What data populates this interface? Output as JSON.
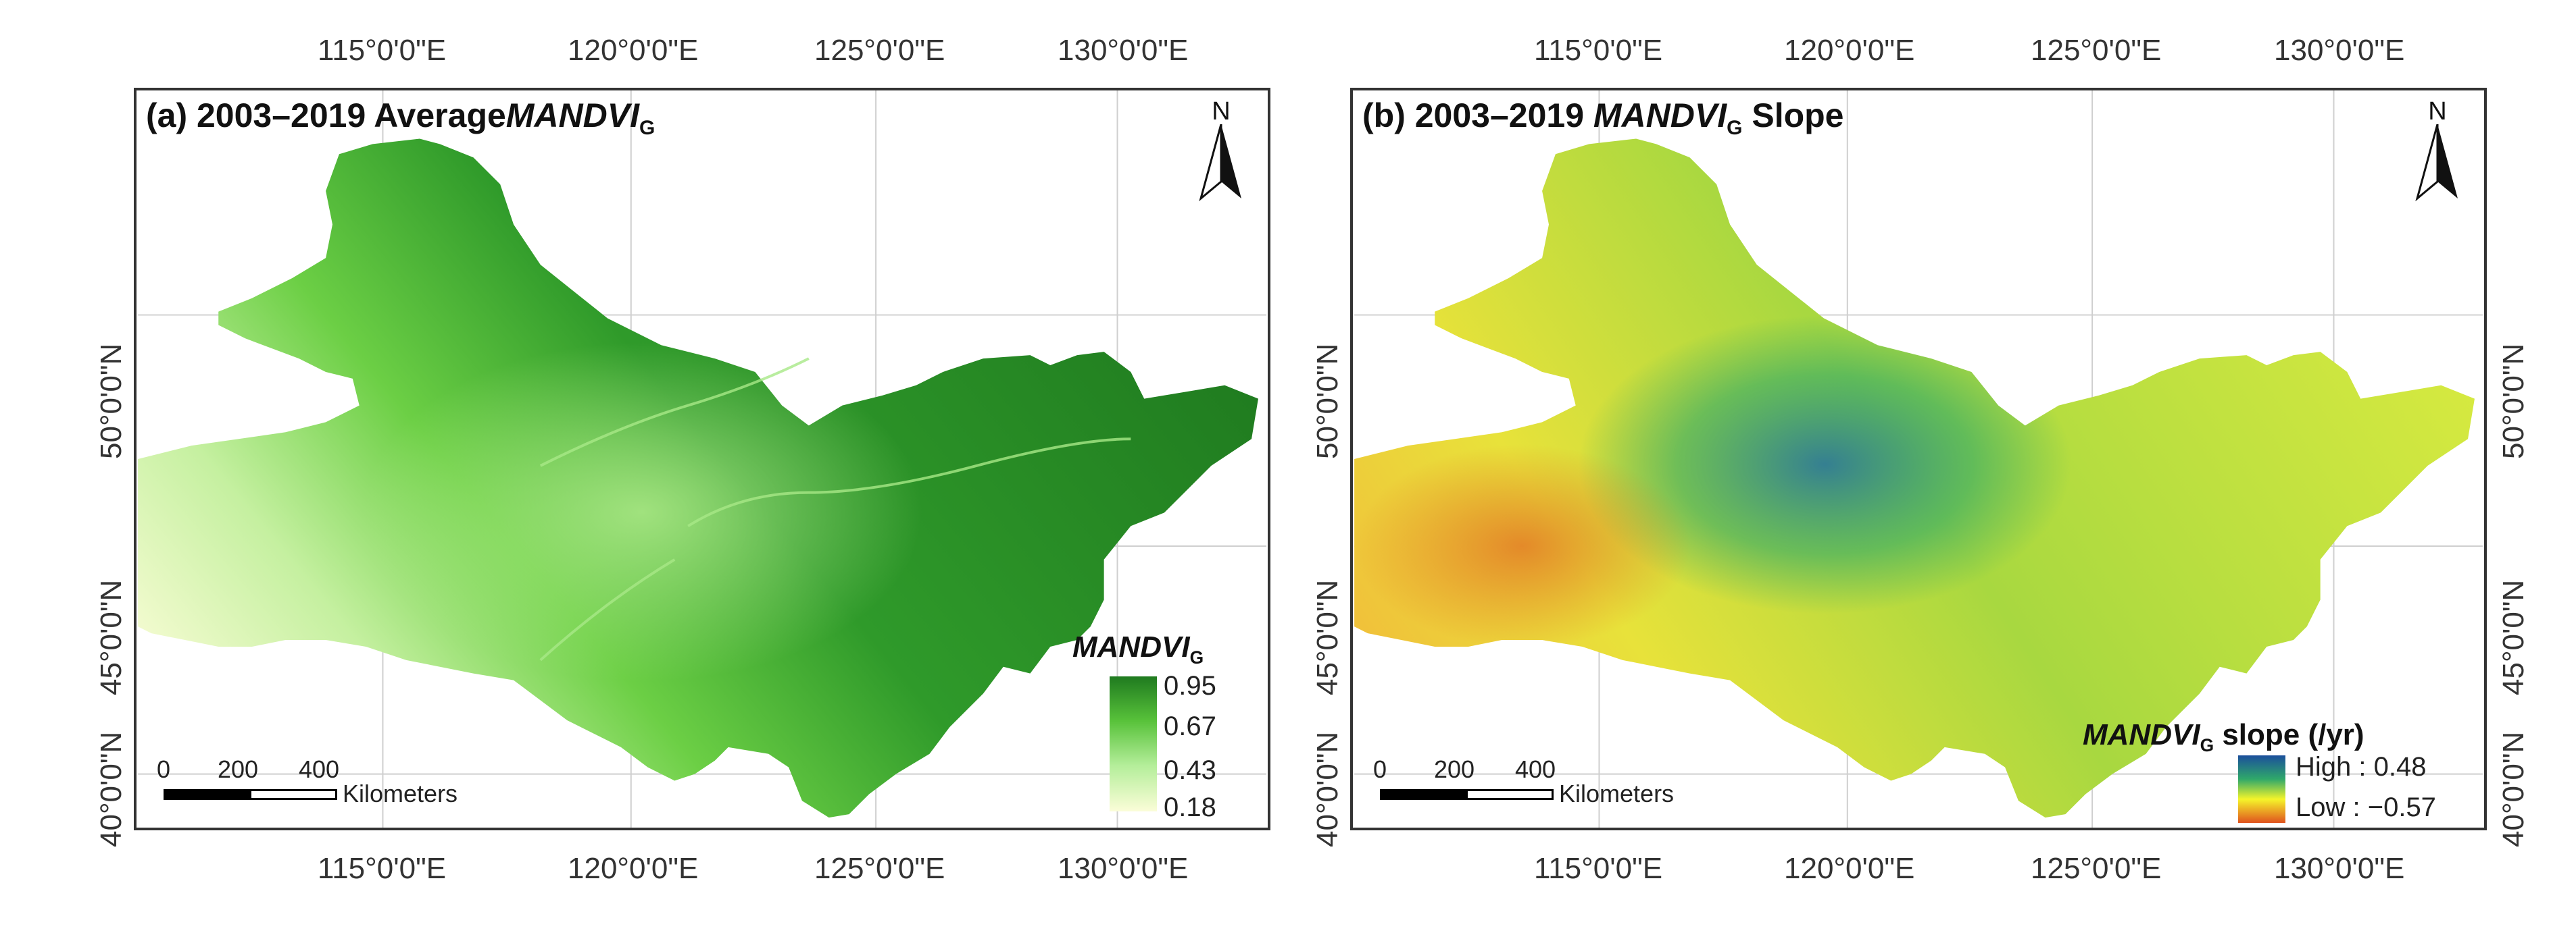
{
  "axes": {
    "x_ticks": [
      "115°0'0\"E",
      "120°0'0\"E",
      "125°0'0\"E",
      "130°0'0\"E"
    ],
    "y_ticks": [
      "50°0'0\"N",
      "45°0'0\"N",
      "40°0'0\"N"
    ]
  },
  "panel_a": {
    "title_prefix": "(a) 2003–2019 Average",
    "title_var": "MANDVI",
    "title_sub": "G",
    "legend": {
      "title_var": "MANDVI",
      "title_sub": "G",
      "values": [
        "0.95",
        "0.67",
        "0.43",
        "0.18"
      ],
      "colors": [
        "#1f7a1f",
        "#58c23a",
        "#b4ee9a",
        "#fbfdd8"
      ]
    },
    "north_label": "N",
    "scale": {
      "ticks": [
        "0",
        "200",
        "400"
      ],
      "unit": "Kilometers"
    }
  },
  "panel_b": {
    "title_prefix": "(b) 2003–2019 ",
    "title_var": "MANDVI",
    "title_sub": "G",
    "title_suffix": " Slope",
    "legend": {
      "title_var": "MANDVI",
      "title_sub": "G",
      "title_suffix": " slope (/yr)",
      "high": "High : 0.48",
      "low": "Low : −0.57",
      "colors": [
        "#1b4f9c",
        "#2fa86a",
        "#f5f52a",
        "#e0531e"
      ]
    },
    "north_label": "N",
    "scale": {
      "ticks": [
        "0",
        "200",
        "400"
      ],
      "unit": "Kilometers"
    }
  }
}
